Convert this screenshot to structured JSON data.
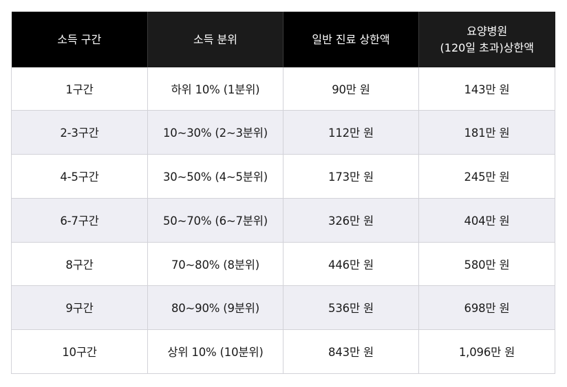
{
  "table": {
    "headers": {
      "col1": "소득 구간",
      "col2": "소득 분위",
      "col3": "일반 진료 상한액",
      "col4_line1": "요양병원",
      "col4_line2": "(120일 초과)상한액"
    },
    "rows": [
      {
        "bracket": "1구간",
        "decile": "하위 10% (1분위)",
        "general": "90만 원",
        "nursing": "143만 원"
      },
      {
        "bracket": "2-3구간",
        "decile": "10~30% (2~3분위)",
        "general": "112만 원",
        "nursing": "181만 원"
      },
      {
        "bracket": "4-5구간",
        "decile": "30~50% (4~5분위)",
        "general": "173만 원",
        "nursing": "245만 원"
      },
      {
        "bracket": "6-7구간",
        "decile": "50~70% (6~7분위)",
        "general": "326만 원",
        "nursing": "404만 원"
      },
      {
        "bracket": "8구간",
        "decile": "70~80% (8분위)",
        "general": "446만 원",
        "nursing": "580만 원"
      },
      {
        "bracket": "9구간",
        "decile": "80~90% (9분위)",
        "general": "536만 원",
        "nursing": "698만 원"
      },
      {
        "bracket": "10구간",
        "decile": "상위 10% (10분위)",
        "general": "843만 원",
        "nursing": "1,096만 원"
      }
    ]
  }
}
